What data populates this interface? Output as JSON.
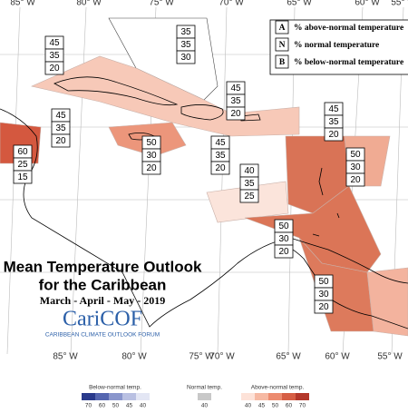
{
  "title": "Mean Temperature Outlook",
  "title_line2": "for the Caribbean",
  "period": "March - April - May - 2019",
  "logo": {
    "name": "CariCOF",
    "tagline": "CARIBBEAN CLIMATE OUTLOOK FORUM"
  },
  "longitude_labels_top": [
    "85° W",
    "80° W",
    "75° W",
    "70° W",
    "65° W",
    "60° W",
    "55° W"
  ],
  "longitude_labels_bottom": [
    "85° W",
    "80° W",
    "75° W",
    "70° W",
    "65° W",
    "60° W",
    "55° W"
  ],
  "key": [
    {
      "letter": "A",
      "text": "% above-normal temperature"
    },
    {
      "letter": "N",
      "text": "% normal temperature"
    },
    {
      "letter": "B",
      "text": "% below-normal temperature"
    }
  ],
  "forecasts": [
    {
      "above": 45,
      "normal": 35,
      "below": 20
    },
    {
      "above": 35,
      "normal": 35,
      "below": 30
    },
    {
      "above": 45,
      "normal": 35,
      "below": 20
    },
    {
      "above": 45,
      "normal": 35,
      "below": 20
    },
    {
      "above": 60,
      "normal": 25,
      "below": 15
    },
    {
      "above": 50,
      "normal": 30,
      "below": 20
    },
    {
      "above": 45,
      "normal": 35,
      "below": 20
    },
    {
      "above": 45,
      "normal": 35,
      "below": 20
    },
    {
      "above": 50,
      "normal": 30,
      "below": 20
    },
    {
      "above": 40,
      "normal": 35,
      "below": 25
    },
    {
      "above": 50,
      "normal": 30,
      "below": 20
    },
    {
      "above": 50,
      "normal": 30,
      "below": 20
    }
  ],
  "colorbar": {
    "below": {
      "label": "Below-normal temp.",
      "ticks": [
        70,
        60,
        50,
        45,
        40
      ]
    },
    "normal": {
      "label": "Normal temp.",
      "ticks": [
        40
      ]
    },
    "above": {
      "label": "Above-normal temp.",
      "ticks": [
        40,
        45,
        50,
        60,
        70
      ]
    }
  }
}
